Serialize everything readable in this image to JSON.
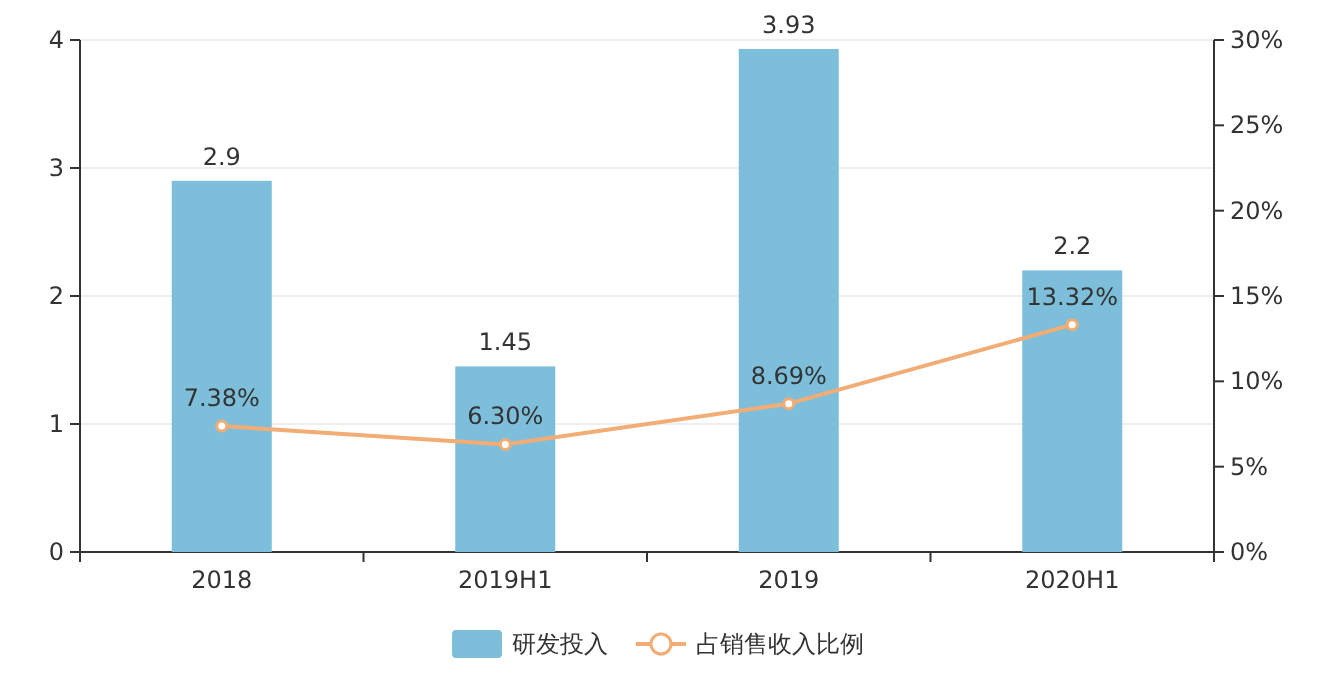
{
  "chart_data": {
    "type": "bar",
    "categories": [
      "2018",
      "2019H1",
      "2019",
      "2020H1"
    ],
    "series": [
      {
        "name": "研发投入",
        "color": "#7dbfdb",
        "values": [
          2.9,
          1.45,
          3.93,
          2.2
        ],
        "value_labels": [
          "2.9",
          "1.45",
          "3.93",
          "2.2"
        ]
      },
      {
        "name": "占销售收入比例",
        "type": "line",
        "axis": "y2",
        "color": "#f2ac74",
        "marker": "circle",
        "values": [
          7.38,
          6.3,
          8.69,
          13.32
        ],
        "value_labels": [
          "7.38%",
          "6.30%",
          "8.69%",
          "13.32%"
        ]
      }
    ],
    "ylim": [
      0,
      4
    ],
    "yticks": [
      0,
      1,
      2,
      3,
      4
    ],
    "y2lim": [
      0,
      30
    ],
    "y2ticks": [
      {
        "value": 0,
        "label": "0%"
      },
      {
        "value": 5,
        "label": "5%"
      },
      {
        "value": 10,
        "label": "10%"
      },
      {
        "value": 15,
        "label": "15%"
      },
      {
        "value": 20,
        "label": "20%"
      },
      {
        "value": 25,
        "label": "25%"
      },
      {
        "value": 30,
        "label": "30%"
      }
    ],
    "grid": "y",
    "legend": "bottom"
  }
}
